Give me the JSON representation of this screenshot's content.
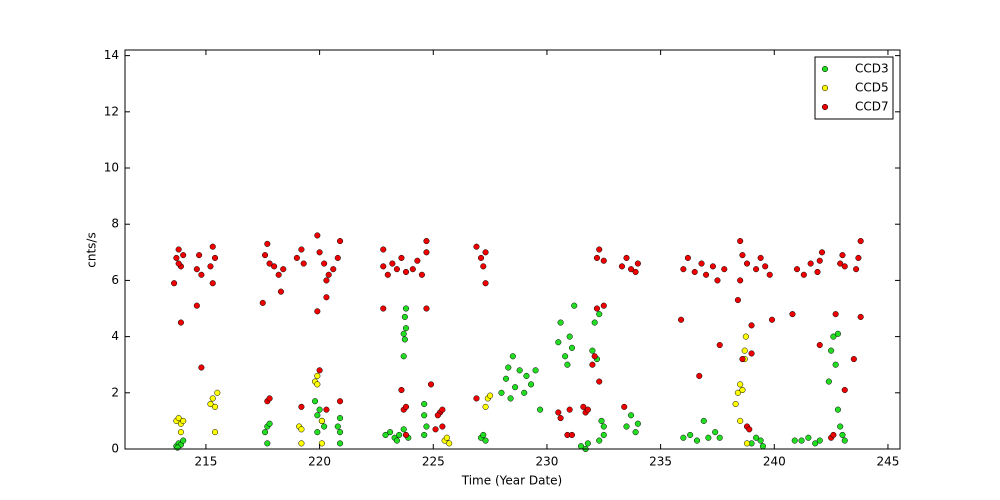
{
  "chart_data": {
    "type": "scatter",
    "xlabel": "Time (Year Date)",
    "ylabel": "cnts/s",
    "xlim": [
      211.44,
      245.53
    ],
    "ylim": [
      0,
      14.2
    ],
    "xticks": [
      215,
      220,
      225,
      230,
      235,
      240,
      245
    ],
    "yticks": [
      0,
      2,
      4,
      6,
      8,
      10,
      12,
      14
    ],
    "legend": "upper right",
    "series": [
      {
        "name": "CCD3",
        "color": "#22dd22",
        "x": [
          213.7,
          213.8,
          213.9,
          214.0,
          213.75,
          217.6,
          217.7,
          217.8,
          217.7,
          219.8,
          219.9,
          220.0,
          220.1,
          220.2,
          219.9,
          220.9,
          220.9,
          220.8,
          220.9,
          222.9,
          223.1,
          223.3,
          223.5,
          223.7,
          223.9,
          223.4,
          223.7,
          223.75,
          223.8,
          223.75,
          223.8,
          223.7,
          224.6,
          224.6,
          224.7,
          224.6,
          227.1,
          227.2,
          227.3,
          228.0,
          228.2,
          228.4,
          228.5,
          228.6,
          228.8,
          229.0,
          229.1,
          229.3,
          229.5,
          228.3,
          229.7,
          230.5,
          230.6,
          230.8,
          231.0,
          231.1,
          231.2,
          230.9,
          231.5,
          231.7,
          231.8,
          232.0,
          232.1,
          232.2,
          232.3,
          232.3,
          232.5,
          232.4,
          232.5,
          233.5,
          233.7,
          233.9,
          234.0,
          236.0,
          236.3,
          236.6,
          236.9,
          237.1,
          237.4,
          237.6,
          239.0,
          239.2,
          239.4,
          239.5,
          240.9,
          241.2,
          241.5,
          241.8,
          242.0,
          242.4,
          242.5,
          242.6,
          242.7,
          242.8,
          242.9,
          243.0,
          242.8,
          243.1
        ],
        "values": [
          0.1,
          0.2,
          0.15,
          0.3,
          0.05,
          0.6,
          0.8,
          0.9,
          0.2,
          1.7,
          1.2,
          1.4,
          1.0,
          0.8,
          0.6,
          0.6,
          1.1,
          0.8,
          0.2,
          0.5,
          0.6,
          0.4,
          0.5,
          0.7,
          0.4,
          0.3,
          3.3,
          3.9,
          4.3,
          4.7,
          5.0,
          4.1,
          1.6,
          1.2,
          0.8,
          0.5,
          0.4,
          0.5,
          0.3,
          2.0,
          2.5,
          1.8,
          3.3,
          2.2,
          2.8,
          2.0,
          2.6,
          2.3,
          2.8,
          2.9,
          1.4,
          3.8,
          4.5,
          3.3,
          4.0,
          3.6,
          5.1,
          3.0,
          0.1,
          0.0,
          0.2,
          3.5,
          4.5,
          3.2,
          4.8,
          0.3,
          0.8,
          1.0,
          0.5,
          0.8,
          1.2,
          0.6,
          0.9,
          0.4,
          0.5,
          0.3,
          1.0,
          0.4,
          0.6,
          0.4,
          0.2,
          0.4,
          0.3,
          0.1,
          0.3,
          0.3,
          0.4,
          0.2,
          0.3,
          2.4,
          3.5,
          4.0,
          3.0,
          4.1,
          0.8,
          0.5,
          1.4,
          0.3
        ]
      },
      {
        "name": "CCD5",
        "color": "#ffff00",
        "x": [
          213.7,
          213.8,
          213.9,
          214.0,
          213.9,
          215.2,
          215.3,
          215.4,
          215.5,
          215.4,
          219.1,
          219.2,
          219.2,
          219.8,
          219.9,
          219.9,
          220.1,
          220.1,
          225.5,
          225.6,
          225.7,
          227.3,
          227.4,
          227.5,
          238.4,
          238.5,
          238.6,
          238.3,
          238.7,
          238.75,
          238.7,
          238.5,
          238.8
        ],
        "values": [
          1.0,
          1.1,
          0.9,
          1.0,
          0.6,
          1.6,
          1.8,
          1.5,
          2.0,
          0.6,
          0.8,
          0.7,
          0.2,
          2.4,
          2.6,
          2.3,
          1.0,
          0.2,
          0.3,
          0.4,
          0.2,
          1.5,
          1.8,
          1.9,
          2.0,
          2.3,
          2.1,
          1.6,
          3.5,
          4.0,
          3.2,
          1.0,
          0.2
        ]
      },
      {
        "name": "CCD7",
        "color": "#ee0000",
        "x": [
          213.7,
          213.8,
          213.9,
          214.0,
          213.8,
          213.6,
          213.9,
          214.6,
          214.7,
          214.8,
          214.8,
          214.6,
          215.2,
          215.3,
          215.4,
          215.3,
          217.6,
          217.7,
          217.8,
          217.5,
          217.7,
          217.8,
          218.0,
          218.2,
          218.4,
          218.3,
          219.0,
          219.2,
          219.3,
          219.2,
          219.9,
          220.0,
          220.2,
          220.4,
          220.6,
          220.8,
          220.9,
          220.3,
          219.9,
          220.0,
          220.3,
          220.3,
          220.9,
          222.8,
          223.0,
          223.2,
          223.4,
          223.6,
          223.8,
          222.8,
          222.8,
          223.6,
          224.1,
          224.3,
          224.5,
          224.7,
          224.7,
          224.7,
          223.7,
          223.8,
          223.8,
          225.3,
          225.4,
          225.2,
          225.1,
          225.4,
          224.9,
          226.9,
          227.1,
          227.3,
          227.2,
          227.3,
          226.9,
          230.5,
          230.6,
          230.9,
          231.1,
          231.0,
          231.6,
          231.7,
          231.8,
          232.1,
          232.0,
          232.3,
          232.2,
          232.5,
          232.2,
          232.3,
          232.5,
          233.3,
          233.5,
          233.7,
          234.0,
          233.9,
          233.4,
          236.0,
          236.2,
          236.5,
          236.8,
          235.9,
          236.7,
          237.0,
          237.3,
          237.5,
          237.8,
          237.6,
          238.5,
          238.6,
          238.8,
          238.4,
          238.5,
          238.6,
          239.2,
          239.4,
          239.6,
          239.8,
          239.9,
          239.0,
          239.0,
          238.8,
          238.9,
          241.0,
          241.3,
          241.6,
          241.9,
          240.8,
          242.0,
          242.1,
          242.0,
          242.5,
          242.6,
          242.7,
          242.9,
          243.0,
          243.1,
          243.6,
          243.7,
          243.8,
          243.8,
          243.5,
          243.1
        ],
        "values": [
          6.8,
          7.1,
          6.5,
          6.9,
          6.6,
          5.9,
          4.5,
          6.4,
          6.9,
          6.2,
          2.9,
          5.1,
          6.5,
          7.2,
          6.8,
          5.9,
          6.9,
          7.3,
          6.6,
          5.2,
          1.7,
          1.8,
          6.5,
          6.2,
          6.4,
          5.6,
          6.8,
          7.1,
          6.6,
          1.5,
          7.6,
          7.0,
          6.6,
          6.2,
          6.4,
          6.8,
          7.4,
          6.0,
          4.9,
          2.8,
          5.4,
          1.4,
          1.7,
          6.5,
          6.2,
          6.6,
          6.4,
          6.8,
          6.3,
          7.1,
          5.0,
          2.1,
          6.4,
          6.7,
          6.2,
          7.0,
          7.4,
          5.0,
          1.4,
          1.5,
          0.5,
          1.3,
          1.4,
          1.2,
          0.7,
          0.8,
          2.3,
          7.2,
          6.8,
          7.0,
          6.5,
          5.9,
          1.8,
          1.3,
          1.1,
          0.5,
          0.5,
          1.4,
          1.5,
          1.3,
          1.4,
          3.3,
          3.0,
          2.4,
          5.0,
          5.1,
          6.8,
          7.1,
          6.7,
          6.5,
          6.8,
          6.4,
          6.6,
          6.3,
          1.5,
          6.4,
          6.8,
          6.3,
          6.6,
          4.6,
          2.6,
          6.2,
          6.5,
          6.0,
          6.4,
          3.7,
          7.4,
          6.9,
          6.6,
          5.3,
          6.0,
          3.2,
          6.4,
          6.8,
          6.5,
          6.2,
          4.6,
          3.4,
          4.4,
          0.8,
          0.7,
          6.4,
          6.2,
          6.6,
          6.3,
          4.8,
          6.7,
          7.0,
          3.7,
          0.4,
          0.5,
          4.8,
          6.6,
          6.9,
          6.5,
          6.4,
          6.8,
          7.4,
          4.7,
          3.2,
          2.1
        ]
      }
    ]
  }
}
